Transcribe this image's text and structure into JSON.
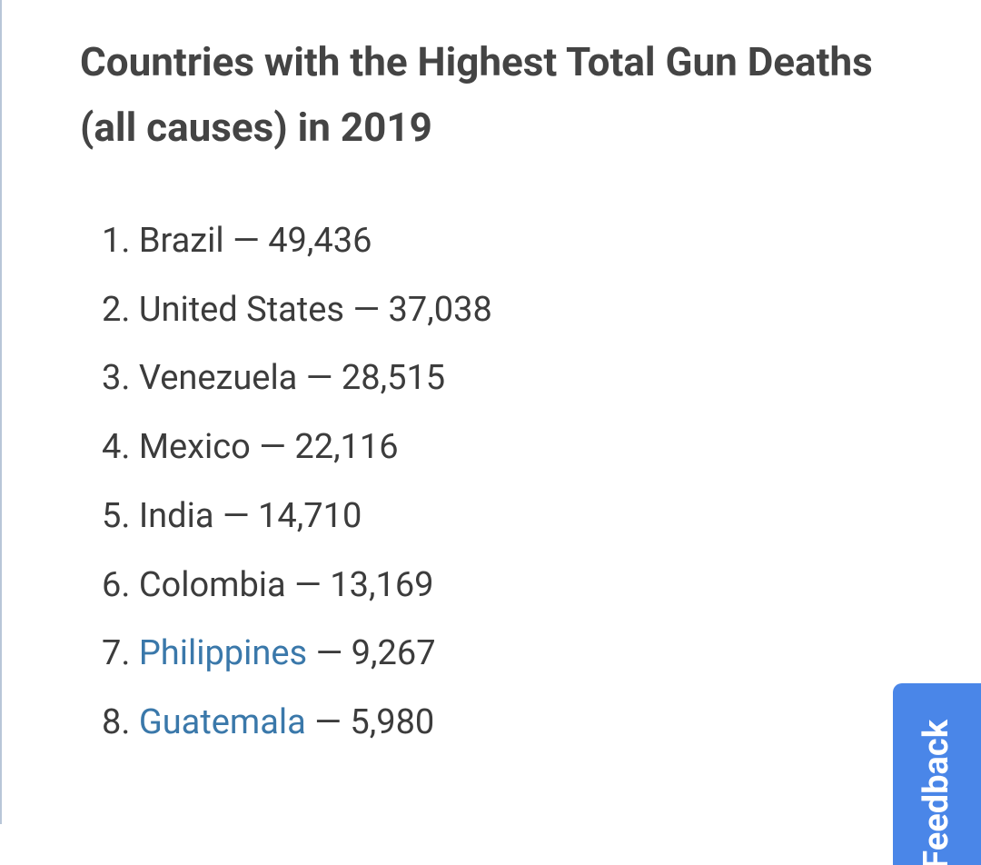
{
  "header": {
    "title": "Countries with the Highest Total Gun Deaths (all causes) in 2019"
  },
  "list": {
    "separator": "—",
    "items": [
      {
        "marker": "1.",
        "country": "Brazil",
        "deaths": "49,436",
        "link": false
      },
      {
        "marker": "2.",
        "country": "United States",
        "deaths": "37,038",
        "link": false
      },
      {
        "marker": "3.",
        "country": "Venezuela",
        "deaths": "28,515",
        "link": false
      },
      {
        "marker": "4.",
        "country": "Mexico",
        "deaths": "22,116",
        "link": false
      },
      {
        "marker": "5.",
        "country": "India",
        "deaths": "14,710",
        "link": false
      },
      {
        "marker": "6.",
        "country": "Colombia",
        "deaths": "13,169",
        "link": false
      },
      {
        "marker": "7.",
        "country": "Philippines",
        "deaths": "9,267",
        "link": true
      },
      {
        "marker": "8.",
        "country": "Guatemala",
        "deaths": "5,980",
        "link": true
      }
    ]
  },
  "feedback_tab": "Feedback"
}
